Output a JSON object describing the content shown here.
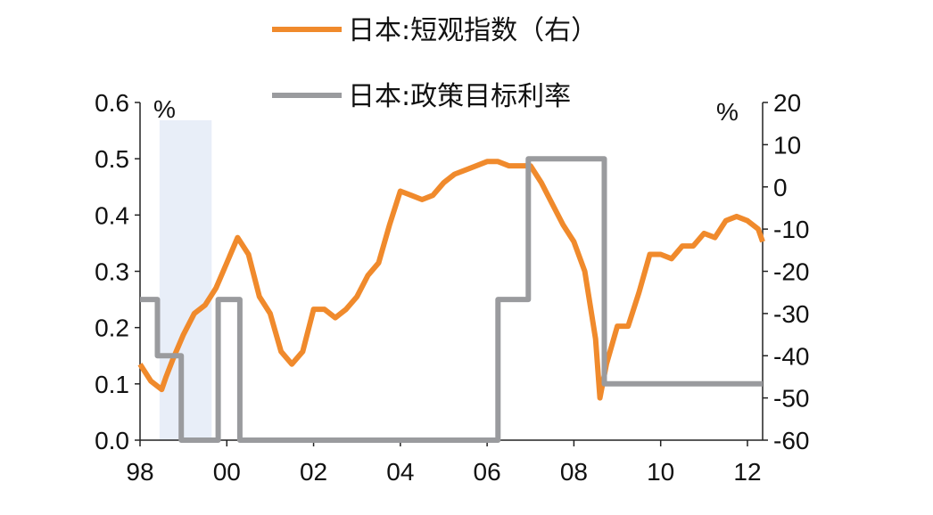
{
  "chart_data": {
    "type": "line",
    "title": "",
    "legend": {
      "placement": "top-center",
      "entries": [
        "日本:短观指数（右）",
        "日本:政策目标利率"
      ]
    },
    "shaded_region": {
      "x": [
        98.45,
        99.65
      ],
      "color": "#e8eef8"
    },
    "x_axis": {
      "tick_labels": [
        "98",
        "00",
        "02",
        "04",
        "06",
        "08",
        "10",
        "12"
      ],
      "ticks": [
        98,
        100,
        102,
        104,
        106,
        108,
        110,
        112
      ],
      "range": [
        98,
        112.35
      ]
    },
    "y_left": {
      "unit": "%",
      "range": [
        0.0,
        0.6
      ],
      "tick_labels": [
        "0.0",
        "0.1",
        "0.2",
        "0.3",
        "0.4",
        "0.5",
        "0.6"
      ],
      "ticks": [
        0.0,
        0.1,
        0.2,
        0.3,
        0.4,
        0.5,
        0.6
      ]
    },
    "y_right": {
      "unit": "%",
      "range": [
        -60,
        20
      ],
      "tick_labels": [
        "-60",
        "-50",
        "-40",
        "-30",
        "-20",
        "-10",
        "0",
        "10",
        "20"
      ],
      "ticks": [
        -60,
        -50,
        -40,
        -30,
        -20,
        -10,
        0,
        10,
        20
      ]
    },
    "series": [
      {
        "name": "日本:短观指数（右）",
        "axis": "right",
        "color": "#f08a2c",
        "x": [
          98.0,
          98.25,
          98.5,
          98.6,
          98.75,
          99.0,
          99.25,
          99.5,
          99.75,
          100.0,
          100.25,
          100.5,
          100.75,
          101.0,
          101.25,
          101.5,
          101.75,
          102.0,
          102.25,
          102.5,
          102.75,
          103.0,
          103.25,
          103.5,
          103.75,
          104.0,
          104.25,
          104.5,
          104.75,
          105.0,
          105.25,
          105.5,
          105.75,
          106.0,
          106.25,
          106.5,
          106.75,
          107.0,
          107.25,
          107.5,
          107.75,
          108.0,
          108.25,
          108.5,
          108.6,
          108.75,
          109.0,
          109.25,
          109.5,
          109.75,
          110.0,
          110.25,
          110.5,
          110.75,
          111.0,
          111.25,
          111.5,
          111.75,
          112.0,
          112.25,
          112.35
        ],
        "y": [
          -42,
          -46,
          -48,
          -45,
          -41,
          -35,
          -30,
          -28,
          -24,
          -18,
          -12,
          -16,
          -26,
          -30,
          -39,
          -42,
          -39,
          -29,
          -29,
          -31,
          -29,
          -26,
          -21,
          -18,
          -9,
          -1,
          -2,
          -3,
          -2,
          1,
          3,
          4,
          5,
          6,
          6,
          5,
          5,
          5,
          1,
          -4,
          -9,
          -13,
          -20,
          -36,
          -50,
          -42,
          -33,
          -33,
          -25,
          -16,
          -16,
          -17,
          -14,
          -14,
          -11,
          -12,
          -8,
          -7,
          -8,
          -10,
          -13
        ]
      },
      {
        "name": "日本:政策目标利率",
        "axis": "left",
        "color": "#9a9b9e",
        "x": [
          98.0,
          98.4,
          98.4,
          98.95,
          98.95,
          99.8,
          99.8,
          100.3,
          100.3,
          101.2,
          101.2,
          106.25,
          106.25,
          106.95,
          106.95,
          108.7,
          108.7,
          110.0,
          110.0,
          112.35
        ],
        "y": [
          0.25,
          0.25,
          0.15,
          0.15,
          0.0,
          0.0,
          0.25,
          0.25,
          0.0,
          0.0,
          0.0,
          0.0,
          0.25,
          0.25,
          0.5,
          0.5,
          0.1,
          0.1,
          0.1,
          0.1
        ]
      }
    ]
  }
}
